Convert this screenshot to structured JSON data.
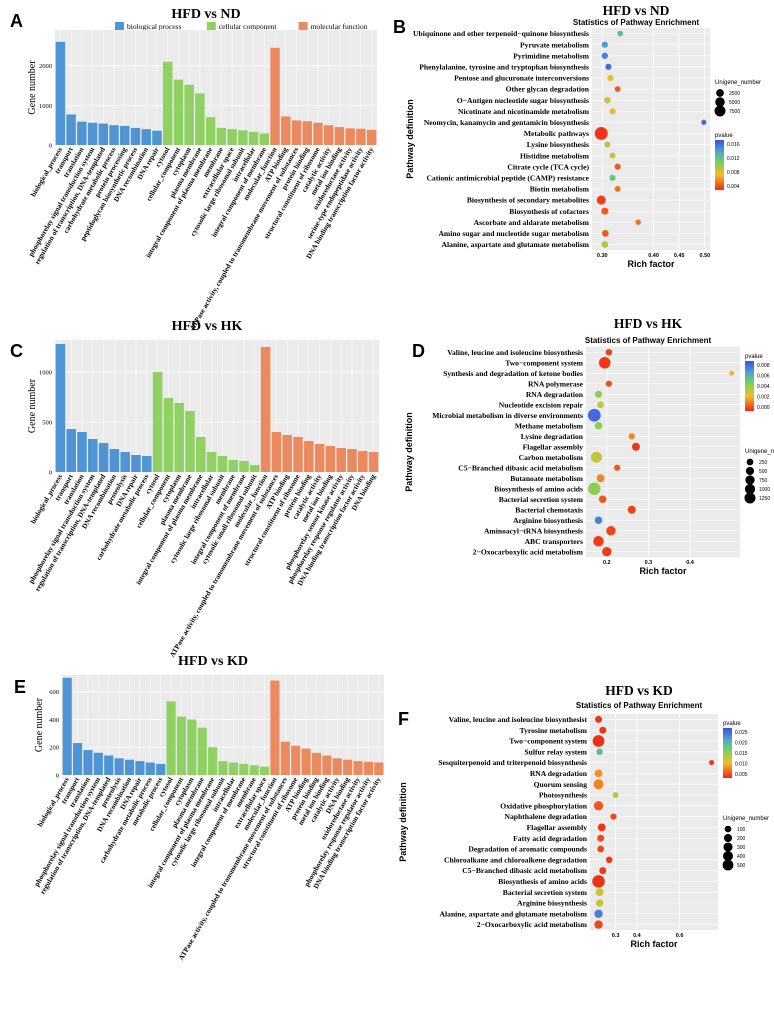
{
  "colors": {
    "bp": "#4f94d4",
    "cc": "#8fd163",
    "mf": "#ec8a5f",
    "grid": "#ffffff",
    "panel_bg": "#ebebeb"
  },
  "legend_labels": {
    "bp": "biological process",
    "cc": "cellular component",
    "mf": "molecular function"
  },
  "chart_data": [
    {
      "id": "A",
      "type": "bar",
      "title": "HFD vs ND",
      "ylabel": "Gene number",
      "ylim": [
        0,
        2900
      ],
      "yticks": [
        0,
        1000,
        2000
      ],
      "ytick_labels": [
        "0",
        "1000",
        "2000"
      ],
      "groups": {
        "bp": {
          "categories": [
            "biological_process",
            "transport",
            "translation",
            "phosphorelay signal transduction system",
            "regulation of transcription, DNA-templated",
            "carbohydrate metabolic process",
            "protein processing",
            "peptidoglycan biosynthetic process",
            "DNA recombination",
            "DNA repair"
          ],
          "values": [
            2600,
            770,
            590,
            560,
            540,
            500,
            480,
            430,
            400,
            360
          ]
        },
        "cc": {
          "categories": [
            "cytosol",
            "cellular_component",
            "cytoplasm",
            "plasma membrane",
            "integral component of plasma membrane",
            "membrane",
            "extracellular space",
            "cytosolic large ribosomal subunit",
            "intracellular",
            "integral component of membrane"
          ],
          "values": [
            2100,
            1650,
            1520,
            1300,
            700,
            430,
            400,
            370,
            330,
            290
          ]
        },
        "mf": {
          "categories": [
            "molecular_function",
            "ATP binding",
            "ATPase activity, coupled to transmembrane movement of substances",
            "protein binding",
            "structural constituent of ribosome",
            "catalytic activity",
            "metal ion binding",
            "oxidoreductase activity",
            "serine-type endopeptidase activity",
            "DNA binding transcription factor activity"
          ],
          "values": [
            2450,
            720,
            620,
            600,
            560,
            500,
            450,
            420,
            410,
            380
          ]
        }
      }
    },
    {
      "id": "C",
      "type": "bar",
      "title": "HFD vs HK",
      "ylabel": "Gene number",
      "ylim": [
        0,
        1320
      ],
      "yticks": [
        0,
        500,
        1000
      ],
      "ytick_labels": [
        "0",
        "500",
        "1000"
      ],
      "groups": {
        "bp": {
          "categories": [
            "biological_process",
            "transport",
            "translation",
            "phosphorelay signal transduction system",
            "regulation of transcription, DNA-templated",
            "DNA recombination",
            "proteolysis",
            "DNA repair",
            "carbohydrate metabolic process"
          ],
          "values": [
            1280,
            430,
            400,
            330,
            290,
            230,
            200,
            170,
            160
          ]
        },
        "cc": {
          "categories": [
            "cytosol",
            "cellular_component",
            "cytoplasm",
            "plasma membrane",
            "integral component of plasma membrane",
            "intracellular",
            "cytosolic large ribosomal subunit",
            "membrane",
            "integral component of membrane",
            "cytosolic small ribosomal subunit"
          ],
          "values": [
            1000,
            740,
            690,
            610,
            350,
            200,
            160,
            120,
            110,
            70
          ]
        },
        "mf": {
          "categories": [
            "molecular_function",
            "ATPase activity, coupled to transmembrane movement of substances",
            "ATP binding",
            "structural constituent of ribosome",
            "protein binding",
            "catalytic activity",
            "metal ion binding",
            "phosphorelay sensor kinase activity",
            "phosphorelay response regulator activity",
            "DNA binding transcription factor activity",
            "DNA binding"
          ],
          "values": [
            1250,
            400,
            370,
            350,
            310,
            280,
            260,
            240,
            230,
            210,
            200
          ]
        }
      }
    },
    {
      "id": "E",
      "type": "bar",
      "title": "HFD vs KD",
      "ylabel": "Gene number",
      "ylim": [
        0,
        720
      ],
      "yticks": [
        0,
        200,
        400,
        600
      ],
      "ytick_labels": [
        "0",
        "200",
        "400",
        "600"
      ],
      "groups": {
        "bp": {
          "categories": [
            "biological_process",
            "transport",
            "translation",
            "phosphorelay signal transduction system",
            "regulation of transcription, DNA-templated",
            "proteolysis",
            "DNA recombination",
            "DNA repair",
            "carbohydrate metabolic process",
            "metabolic process"
          ],
          "values": [
            700,
            230,
            180,
            160,
            140,
            120,
            110,
            100,
            90,
            80
          ]
        },
        "cc": {
          "categories": [
            "cytosol",
            "cellular_component",
            "cytoplasm",
            "plasma membrane",
            "integral component of plasma membrane",
            "cytosolic large ribosomal subunit",
            "intracellular",
            "integral component of membrane",
            "membrane",
            "extracellular space"
          ],
          "values": [
            530,
            420,
            400,
            340,
            200,
            100,
            90,
            80,
            70,
            60
          ]
        },
        "mf": {
          "categories": [
            "molecular_function",
            "ATPase activity, coupled to transmembrane movement of substances",
            "structural constituent of ribosome",
            "ATP binding",
            "protein binding",
            "metal ion binding",
            "catalytic activity",
            "DNA binding",
            "oxidoreductase activity",
            "phosphorelay response regulator activity",
            "DNA binding transcription factor activity"
          ],
          "values": [
            680,
            240,
            210,
            190,
            160,
            140,
            120,
            110,
            100,
            95,
            90
          ]
        }
      }
    },
    {
      "id": "B",
      "type": "scatter",
      "title": "HFD vs ND",
      "subtitle": "Statistics of Pathway Enrichment",
      "xlabel": "Rich factor",
      "ylabel": "Pathway definition",
      "xlim": [
        0.28,
        0.51
      ],
      "xticks": [
        0.3,
        0.4,
        0.45,
        0.5
      ],
      "xtick_labels": [
        "0.30",
        "0.40",
        "0.45",
        "0.50"
      ],
      "pvalue_range": [
        0,
        0.018
      ],
      "pvalue_ticks": [
        "0.016",
        "0.012",
        "0.008",
        "0.004"
      ],
      "size_legend_title": "Unigene_number",
      "size_legend": [
        "2500",
        "5000",
        "7500"
      ],
      "size_range": [
        0,
        8000
      ],
      "pvalue_legend_title": "pvalue",
      "points": [
        {
          "label": "Ubiquinone and other terpenoid−quinone biosynthesis",
          "rich": 0.335,
          "count": 500,
          "p": 0.013
        },
        {
          "label": "Pyruvate metabolism",
          "rich": 0.305,
          "count": 700,
          "p": 0.015
        },
        {
          "label": "Pyrimidine metabolism",
          "rich": 0.305,
          "count": 800,
          "p": 0.016
        },
        {
          "label": "Phenylalanine, tyrosine and tryptophan biosynthesis",
          "rich": 0.312,
          "count": 700,
          "p": 0.017
        },
        {
          "label": "Pentose and glucuronate interconversions",
          "rich": 0.316,
          "count": 700,
          "p": 0.007
        },
        {
          "label": "Other glycan degradation",
          "rich": 0.33,
          "count": 500,
          "p": 0.002
        },
        {
          "label": "O−Antigen nucleotide sugar biosynthesis",
          "rich": 0.31,
          "count": 800,
          "p": 0.008
        },
        {
          "label": "Nicotinate and nicotinamide metabolism",
          "rich": 0.32,
          "count": 600,
          "p": 0.006
        },
        {
          "label": "Neomycin, kanamycin and gentamicin biosynthesis",
          "rich": 0.498,
          "count": 300,
          "p": 0.017
        },
        {
          "label": "Metabolic pathways",
          "rich": 0.298,
          "count": 7600,
          "p": 0.0005
        },
        {
          "label": "Lysine biosynthesis",
          "rich": 0.31,
          "count": 600,
          "p": 0.009
        },
        {
          "label": "Histidine metabolism",
          "rich": 0.32,
          "count": 600,
          "p": 0.008
        },
        {
          "label": "Citrate cycle (TCA cycle)",
          "rich": 0.33,
          "count": 700,
          "p": 0.002
        },
        {
          "label": "Cationic antimicrobial peptide (CAMP) resistance",
          "rich": 0.32,
          "count": 700,
          "p": 0.012
        },
        {
          "label": "Biotin metabolism",
          "rich": 0.33,
          "count": 600,
          "p": 0.003
        },
        {
          "label": "Biosynthesis of secondary metabolites",
          "rich": 0.298,
          "count": 2800,
          "p": 0.001
        },
        {
          "label": "Biosynthesis of cofactors",
          "rich": 0.305,
          "count": 1200,
          "p": 0.002
        },
        {
          "label": "Ascorbate and aldarate metabolism",
          "rich": 0.37,
          "count": 400,
          "p": 0.003
        },
        {
          "label": "Amino sugar and nucleotide sugar metabolism",
          "rich": 0.306,
          "count": 1000,
          "p": 0.002
        },
        {
          "label": "Alanine, aspartate and glutamate metabolism",
          "rich": 0.305,
          "count": 1000,
          "p": 0.009
        }
      ]
    },
    {
      "id": "D",
      "type": "scatter",
      "title": "HFD vs HK",
      "subtitle": "Statistics of Pathway Enrichment",
      "xlabel": "Rich factor",
      "ylabel": "Pathway definition",
      "xlim": [
        0.15,
        0.52
      ],
      "xticks": [
        0.2,
        0.3,
        0.4
      ],
      "xtick_labels": [
        "0.2",
        "0.3",
        "0.4"
      ],
      "pvalue_range": [
        0,
        0.009
      ],
      "pvalue_ticks": [
        "0.008",
        "0.006",
        "0.004",
        "0.002",
        "0.000"
      ],
      "size_legend_title": "Unigene_number",
      "size_legend": [
        "250",
        "500",
        "750",
        "1000",
        "1250"
      ],
      "size_range": [
        0,
        1300
      ],
      "pvalue_legend_title": "pvalue",
      "points": [
        {
          "label": "Valine, leucine and isoleucine biosynthesis",
          "rich": 0.205,
          "count": 150,
          "p": 0.0005
        },
        {
          "label": "Two−component system",
          "rich": 0.195,
          "count": 900,
          "p": 0.0003
        },
        {
          "label": "Synthesis and degradation of ketone bodies",
          "rich": 0.5,
          "count": 40,
          "p": 0.003
        },
        {
          "label": "RNA polymerase",
          "rich": 0.205,
          "count": 120,
          "p": 0.0008
        },
        {
          "label": "RNA degradation",
          "rich": 0.18,
          "count": 200,
          "p": 0.005
        },
        {
          "label": "Nucleotide excision repair",
          "rich": 0.185,
          "count": 150,
          "p": 0.004
        },
        {
          "label": "Microbial metabolism in diverse environments",
          "rich": 0.17,
          "count": 1200,
          "p": 0.0085
        },
        {
          "label": "Methane metabolism",
          "rich": 0.18,
          "count": 250,
          "p": 0.005
        },
        {
          "label": "Lysine degradation",
          "rich": 0.26,
          "count": 120,
          "p": 0.002
        },
        {
          "label": "Flagellar assembly",
          "rich": 0.27,
          "count": 300,
          "p": 0.0003
        },
        {
          "label": "Carbon metabolism",
          "rich": 0.175,
          "count": 800,
          "p": 0.004
        },
        {
          "label": "C5−Branched dibasic acid metabolism",
          "rich": 0.225,
          "count": 120,
          "p": 0.001
        },
        {
          "label": "Butanoate metabolism",
          "rich": 0.185,
          "count": 300,
          "p": 0.002
        },
        {
          "label": "Biosynthesis of amino acids",
          "rich": 0.17,
          "count": 1100,
          "p": 0.005
        },
        {
          "label": "Bacterial secretion system",
          "rich": 0.19,
          "count": 250,
          "p": 0.001
        },
        {
          "label": "Bacterial chemotaxis",
          "rich": 0.26,
          "count": 300,
          "p": 0.0005
        },
        {
          "label": "Arginine biosynthesis",
          "rich": 0.18,
          "count": 250,
          "p": 0.008
        },
        {
          "label": "Aminoacyl−tRNA biosynthesis",
          "rich": 0.21,
          "count": 500,
          "p": 0.0006
        },
        {
          "label": "ABC transporters",
          "rich": 0.18,
          "count": 700,
          "p": 0.0004
        },
        {
          "label": "2−Oxocarboxylic acid metabolism",
          "rich": 0.2,
          "count": 500,
          "p": 0.0004
        }
      ]
    },
    {
      "id": "F",
      "type": "scatter",
      "title": "HFD vs KD",
      "subtitle": "Statistics of Pathway Enrichment",
      "xlabel": "Rich factor",
      "ylabel": "Pathway definition",
      "xlim": [
        0.18,
        0.78
      ],
      "xticks": [
        0.3,
        0.4,
        0.6
      ],
      "xtick_labels": [
        "0.3",
        "0.4",
        "0.6"
      ],
      "pvalue_range": [
        0,
        0.028
      ],
      "pvalue_ticks": [
        "0.025",
        "0.020",
        "0.015",
        "0.010",
        "0.005"
      ],
      "size_legend_title": "Unigene_number",
      "size_legend": [
        "100",
        "200",
        "300",
        "400",
        "500"
      ],
      "size_range": [
        0,
        550
      ],
      "pvalue_legend_title": "pvalue",
      "points": [
        {
          "label": "Valine, leucine and isoleucine biosynthesist",
          "rich": 0.22,
          "count": 80,
          "p": 0.0008
        },
        {
          "label": "Tyrosine metabolism",
          "rich": 0.24,
          "count": 80,
          "p": 0.0008
        },
        {
          "label": "Two−component system",
          "rich": 0.22,
          "count": 400,
          "p": 0.0004
        },
        {
          "label": "Sulfur relay system",
          "rich": 0.225,
          "count": 60,
          "p": 0.02
        },
        {
          "label": "Sesquiterpenoid and triterpenoid biosynthesis",
          "rich": 0.75,
          "count": 20,
          "p": 0.001
        },
        {
          "label": "RNA degradation",
          "rich": 0.22,
          "count": 120,
          "p": 0.007
        },
        {
          "label": "Quorum sensing",
          "rich": 0.22,
          "count": 250,
          "p": 0.006
        },
        {
          "label": "Photosynthesis",
          "rich": 0.3,
          "count": 40,
          "p": 0.013
        },
        {
          "label": "Oxidative phosphorylation",
          "rich": 0.22,
          "count": 200,
          "p": 0.003
        },
        {
          "label": "Naphthalene degradation",
          "rich": 0.29,
          "count": 50,
          "p": 0.002
        },
        {
          "label": "Flagellar assembly",
          "rich": 0.235,
          "count": 120,
          "p": 0.001
        },
        {
          "label": "Fatty acid degradation",
          "rich": 0.23,
          "count": 80,
          "p": 0.002
        },
        {
          "label": "Degradation of aromatic compounds",
          "rich": 0.23,
          "count": 70,
          "p": 0.002
        },
        {
          "label": "Chloroalkane and chloroalkene degradation",
          "rich": 0.27,
          "count": 60,
          "p": 0.001
        },
        {
          "label": "C5−Branched dibasic acid metabolism",
          "rich": 0.24,
          "count": 80,
          "p": 0.001
        },
        {
          "label": "Biosynthesis of amino acids",
          "rich": 0.22,
          "count": 480,
          "p": 0.0005
        },
        {
          "label": "Bacterial secretion system",
          "rich": 0.225,
          "count": 130,
          "p": 0.012
        },
        {
          "label": "Arginine biosynthesis",
          "rich": 0.225,
          "count": 100,
          "p": 0.012
        },
        {
          "label": "Alanine, aspartate and glutamate metabolism",
          "rich": 0.22,
          "count": 150,
          "p": 0.025
        },
        {
          "label": "2−Oxocarboxylic acid metabolism",
          "rich": 0.22,
          "count": 150,
          "p": 0.002
        }
      ]
    }
  ]
}
